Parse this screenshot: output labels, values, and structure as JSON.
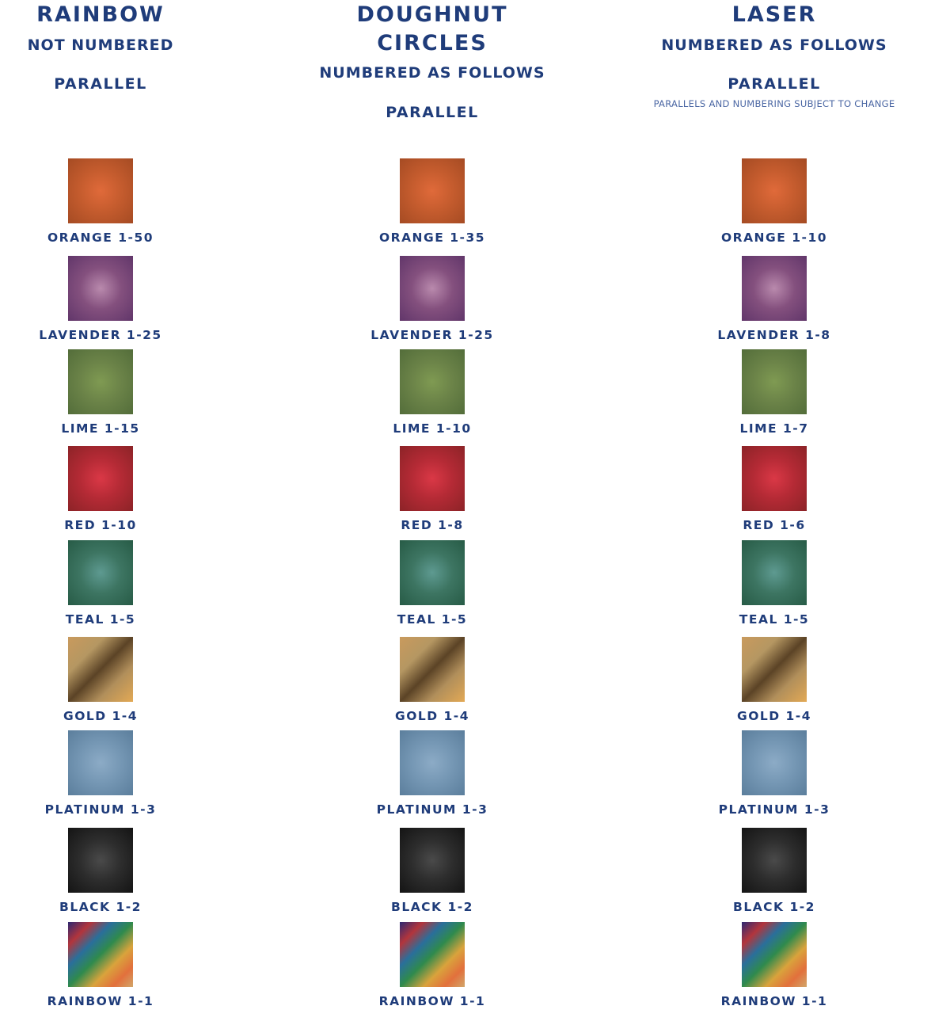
{
  "columns": [
    {
      "title_lines": [
        "RAINBOW"
      ],
      "subtitle": "NOT NUMBERED",
      "parallel": "PARALLEL",
      "note": "",
      "swatches": [
        {
          "color": "orange",
          "label": "ORANGE 1-50"
        },
        {
          "color": "lavender",
          "label": "LAVENDER 1-25"
        },
        {
          "color": "lime",
          "label": "LIME 1-15"
        },
        {
          "color": "red",
          "label": "RED 1-10"
        },
        {
          "color": "teal",
          "label": "TEAL 1-5"
        },
        {
          "color": "gold",
          "label": "GOLD 1-4"
        },
        {
          "color": "platinum",
          "label": "PLATINUM 1-3"
        },
        {
          "color": "black",
          "label": "BLACK 1-2"
        },
        {
          "color": "rainbow",
          "label": "RAINBOW 1-1"
        }
      ]
    },
    {
      "title_lines": [
        "DOUGHNUT",
        "CIRCLES"
      ],
      "subtitle": "NUMBERED AS FOLLOWS",
      "parallel": "PARALLEL",
      "note": "",
      "swatches": [
        {
          "color": "orange",
          "label": "ORANGE 1-35"
        },
        {
          "color": "lavender",
          "label": "LAVENDER 1-25"
        },
        {
          "color": "lime",
          "label": "LIME 1-10"
        },
        {
          "color": "red",
          "label": "RED 1-8"
        },
        {
          "color": "teal",
          "label": "TEAL 1-5"
        },
        {
          "color": "gold",
          "label": "GOLD 1-4"
        },
        {
          "color": "platinum",
          "label": "PLATINUM 1-3"
        },
        {
          "color": "black",
          "label": "BLACK 1-2"
        },
        {
          "color": "rainbow",
          "label": "RAINBOW 1-1"
        }
      ]
    },
    {
      "title_lines": [
        "LASER"
      ],
      "subtitle": "NUMBERED AS FOLLOWS",
      "parallel": "PARALLEL",
      "note": "PARALLELS AND NUMBERING SUBJECT TO CHANGE",
      "swatches": [
        {
          "color": "orange",
          "label": "ORANGE 1-10"
        },
        {
          "color": "lavender",
          "label": "LAVENDER 1-8"
        },
        {
          "color": "lime",
          "label": "LIME 1-7"
        },
        {
          "color": "red",
          "label": "RED 1-6"
        },
        {
          "color": "teal",
          "label": "TEAL 1-5"
        },
        {
          "color": "gold",
          "label": "GOLD 1-4"
        },
        {
          "color": "platinum",
          "label": "PLATINUM 1-3"
        },
        {
          "color": "black",
          "label": "BLACK 1-2"
        },
        {
          "color": "rainbow",
          "label": "RAINBOW 1-1"
        }
      ]
    }
  ],
  "text_color": "#1f3c7a"
}
